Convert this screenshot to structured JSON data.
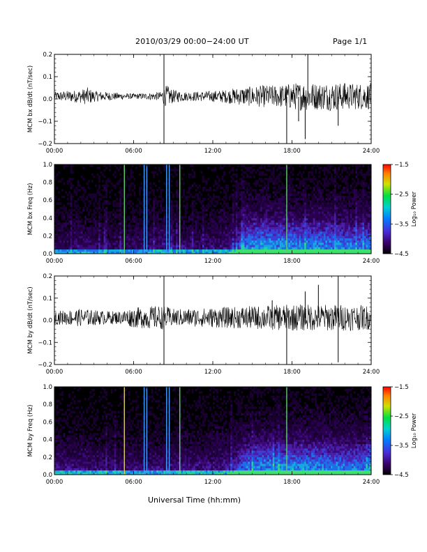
{
  "header": {
    "title": "2010/03/29  00:00−24:00 UT",
    "page": "Page 1/1"
  },
  "x_axis_title": "Universal Time (hh:mm)",
  "chart_data": [
    {
      "type": "line",
      "id": "bx-dbdt",
      "ylabel": "MCM bx dB/dt (nT/sec)",
      "xlim": [
        0,
        24
      ],
      "ylim": [
        -0.2,
        0.2
      ],
      "x_ticks": [
        "00:00",
        "06:00",
        "12:00",
        "18:00",
        "24:00"
      ],
      "y_ticks": [
        {
          "v": 0.2,
          "label": "0.2"
        },
        {
          "v": 0.1,
          "label": "0.1"
        },
        {
          "v": 0.0,
          "label": "0.0"
        },
        {
          "v": -0.1,
          "label": "−0.1"
        },
        {
          "v": -0.2,
          "label": "−0.2"
        }
      ],
      "envelope": [
        [
          0,
          0.02
        ],
        [
          1,
          0.025
        ],
        [
          2,
          0.03
        ],
        [
          2.5,
          0.04
        ],
        [
          3,
          0.025
        ],
        [
          4,
          0.02
        ],
        [
          5,
          0.015
        ],
        [
          6,
          0.012
        ],
        [
          7,
          0.015
        ],
        [
          8,
          0.02
        ],
        [
          8.5,
          0.05
        ],
        [
          9,
          0.03
        ],
        [
          10,
          0.02
        ],
        [
          11,
          0.022
        ],
        [
          12,
          0.025
        ],
        [
          13,
          0.03
        ],
        [
          14,
          0.04
        ],
        [
          15,
          0.045
        ],
        [
          16,
          0.05
        ],
        [
          17,
          0.05
        ],
        [
          18,
          0.06
        ],
        [
          19,
          0.065
        ],
        [
          20,
          0.06
        ],
        [
          21,
          0.065
        ],
        [
          22,
          0.06
        ],
        [
          23,
          0.06
        ],
        [
          24,
          0.06
        ]
      ],
      "spikes": [
        [
          8.3,
          0.2
        ],
        [
          8.3,
          -0.2
        ],
        [
          17.6,
          -0.2
        ],
        [
          19.2,
          0.2
        ],
        [
          19.0,
          -0.18
        ],
        [
          18.5,
          -0.1
        ],
        [
          22,
          0.07
        ],
        [
          21.5,
          -0.12
        ]
      ]
    },
    {
      "type": "heatmap",
      "id": "bx-freq",
      "ylabel": "MCM bx Freq (Hz)",
      "xlim": [
        0,
        24
      ],
      "ylim": [
        0,
        1.0
      ],
      "x_ticks": [
        "00:00",
        "06:00",
        "12:00",
        "18:00",
        "24:00"
      ],
      "y_ticks": [
        {
          "v": 1.0,
          "label": "1.0"
        },
        {
          "v": 0.8,
          "label": "0.8"
        },
        {
          "v": 0.6,
          "label": "0.6"
        },
        {
          "v": 0.4,
          "label": "0.4"
        },
        {
          "v": 0.2,
          "label": "0.2"
        },
        {
          "v": 0.0,
          "label": "0.0"
        }
      ],
      "colorbar": {
        "label": "Log₁₀ Power",
        "range": [
          -4.5,
          -1.5
        ],
        "ticks": [
          "−1.5",
          "−2.5",
          "−3.5",
          "−4.5"
        ]
      },
      "lines": [
        {
          "t": 5.3,
          "color": "#5fd16a"
        },
        {
          "t": 6.8,
          "color": "#3fa0ff"
        },
        {
          "t": 7.0,
          "color": "#3fa0ff"
        },
        {
          "t": 8.5,
          "color": "#3fa0ff"
        },
        {
          "t": 8.7,
          "color": "#3fa0ff"
        },
        {
          "t": 9.5,
          "color": "#5fd16a"
        },
        {
          "t": 17.6,
          "color": "#5fd16a"
        }
      ],
      "activity": [
        [
          0,
          0.35
        ],
        [
          2,
          0.4
        ],
        [
          4,
          0.35
        ],
        [
          6,
          0.35
        ],
        [
          8,
          0.45
        ],
        [
          10,
          0.4
        ],
        [
          12,
          0.4
        ],
        [
          13.5,
          0.5
        ],
        [
          14.5,
          0.85
        ],
        [
          16,
          0.9
        ],
        [
          18,
          0.85
        ],
        [
          20,
          0.85
        ],
        [
          22,
          0.8
        ],
        [
          24,
          0.8
        ]
      ]
    },
    {
      "type": "line",
      "id": "by-dbdt",
      "ylabel": "MCM by dB/dt (nT/sec)",
      "xlim": [
        0,
        24
      ],
      "ylim": [
        -0.2,
        0.2
      ],
      "x_ticks": [
        "00:00",
        "06:00",
        "12:00",
        "18:00",
        "24:00"
      ],
      "y_ticks": [
        {
          "v": 0.2,
          "label": "0.2"
        },
        {
          "v": 0.1,
          "label": "0.1"
        },
        {
          "v": 0.0,
          "label": "0.0"
        },
        {
          "v": -0.1,
          "label": "−0.1"
        },
        {
          "v": -0.2,
          "label": "−0.2"
        }
      ],
      "envelope": [
        [
          0,
          0.03
        ],
        [
          2,
          0.04
        ],
        [
          4,
          0.03
        ],
        [
          5,
          0.03
        ],
        [
          5.5,
          0.04
        ],
        [
          6,
          0.045
        ],
        [
          7,
          0.05
        ],
        [
          8,
          0.055
        ],
        [
          8.5,
          0.05
        ],
        [
          9,
          0.04
        ],
        [
          10,
          0.04
        ],
        [
          12,
          0.045
        ],
        [
          14,
          0.05
        ],
        [
          16,
          0.055
        ],
        [
          18,
          0.06
        ],
        [
          20,
          0.06
        ],
        [
          22,
          0.06
        ],
        [
          24,
          0.055
        ]
      ],
      "spikes": [
        [
          8.3,
          0.2
        ],
        [
          8.3,
          -0.2
        ],
        [
          17.6,
          -0.2
        ],
        [
          21.5,
          -0.19
        ],
        [
          21.5,
          0.2
        ],
        [
          20.0,
          0.16
        ],
        [
          19.0,
          0.13
        ],
        [
          16.5,
          0.09
        ]
      ]
    },
    {
      "type": "heatmap",
      "id": "by-freq",
      "ylabel": "MCM by Freq (Hz)",
      "xlim": [
        0,
        24
      ],
      "ylim": [
        0,
        1.0
      ],
      "x_ticks": [
        "00:00",
        "06:00",
        "12:00",
        "18:00",
        "24:00"
      ],
      "y_ticks": [
        {
          "v": 1.0,
          "label": "1.0"
        },
        {
          "v": 0.8,
          "label": "0.8"
        },
        {
          "v": 0.6,
          "label": "0.6"
        },
        {
          "v": 0.4,
          "label": "0.4"
        },
        {
          "v": 0.2,
          "label": "0.2"
        },
        {
          "v": 0.0,
          "label": "0.0"
        }
      ],
      "colorbar": {
        "label": "Log₁₀ Power",
        "range": [
          -4.5,
          -1.5
        ],
        "ticks": [
          "−1.5",
          "−2.5",
          "−3.5",
          "−4.5"
        ]
      },
      "lines": [
        {
          "t": 5.3,
          "color": "#e0d060"
        },
        {
          "t": 6.8,
          "color": "#3fa0ff"
        },
        {
          "t": 7.0,
          "color": "#3fa0ff"
        },
        {
          "t": 8.5,
          "color": "#3fa0ff"
        },
        {
          "t": 8.7,
          "color": "#3fa0ff"
        },
        {
          "t": 9.5,
          "color": "#5fd16a"
        },
        {
          "t": 17.6,
          "color": "#5fd16a"
        }
      ],
      "activity": [
        [
          0,
          0.45
        ],
        [
          2,
          0.45
        ],
        [
          4,
          0.4
        ],
        [
          6,
          0.4
        ],
        [
          8,
          0.45
        ],
        [
          10,
          0.45
        ],
        [
          12,
          0.45
        ],
        [
          13.5,
          0.55
        ],
        [
          14.5,
          0.8
        ],
        [
          16,
          0.85
        ],
        [
          18,
          0.85
        ],
        [
          20,
          0.85
        ],
        [
          22,
          0.8
        ],
        [
          24,
          0.8
        ]
      ]
    }
  ]
}
